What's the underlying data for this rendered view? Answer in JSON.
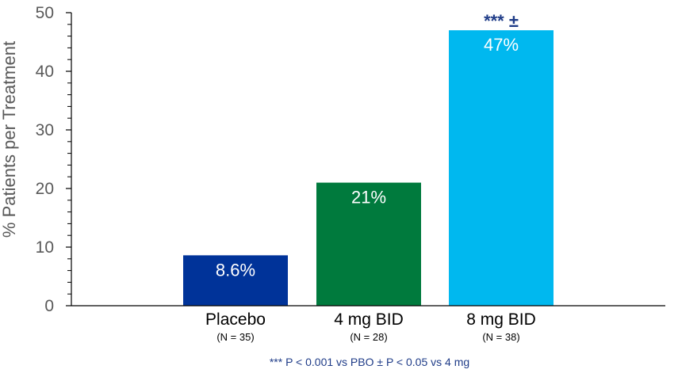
{
  "chart_data": {
    "type": "bar",
    "categories": [
      "Placebo",
      "4 mg BID",
      "8 mg BID"
    ],
    "category_n": [
      "(N = 35)",
      "(N = 28)",
      "(N = 38)"
    ],
    "values": [
      8.6,
      21,
      47
    ],
    "data_labels": [
      "8.6%",
      "21%",
      "47%"
    ],
    "colors": [
      "#003399",
      "#007A3D",
      "#00B8EF"
    ],
    "significance": [
      "",
      "",
      "***  ±"
    ],
    "ylabel": "% Patients per Treatment",
    "ylim": [
      0,
      50
    ],
    "yticks": [
      0,
      10,
      20,
      30,
      40,
      50
    ],
    "grid": false,
    "footnote": "*** P < 0.001 vs PBO   ± P < 0.05 vs 4 mg"
  }
}
